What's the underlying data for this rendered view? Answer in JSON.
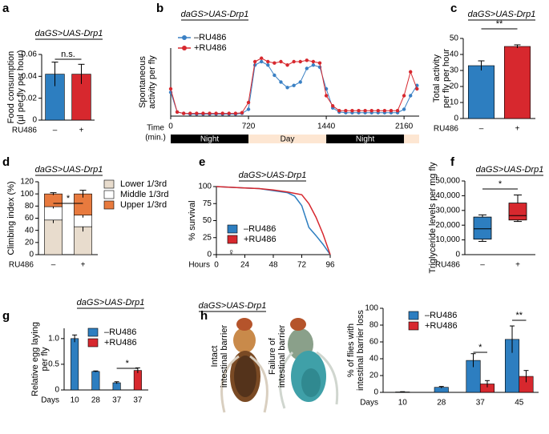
{
  "chart_data": [
    {
      "panel": "a",
      "type": "bar",
      "genotype": "daGS>UAS-Drp1",
      "ylabel": [
        "Food consumption",
        "(µl per fly per hour)"
      ],
      "xlabel": "RU486",
      "categories": [
        "–",
        "+"
      ],
      "values": [
        0.042,
        0.042
      ],
      "errors": [
        0.011,
        0.009
      ],
      "colors": [
        "#2d7ec0",
        "#d7282e"
      ],
      "ylim": [
        0,
        0.06
      ],
      "yticks": [
        0,
        0.02,
        0.04,
        0.06
      ],
      "annotations": [
        "n.s."
      ]
    },
    {
      "panel": "b",
      "type": "line",
      "genotype": "daGS>UAS-Drp1",
      "ylabel": [
        "Spontaneous",
        "activity per fly"
      ],
      "xlabel": [
        "Time",
        "(min.)"
      ],
      "x": [
        0,
        60,
        120,
        180,
        240,
        300,
        360,
        420,
        480,
        540,
        600,
        660,
        720,
        780,
        840,
        900,
        960,
        1020,
        1080,
        1140,
        1200,
        1260,
        1320,
        1380,
        1440,
        1500,
        1560,
        1620,
        1680,
        1740,
        1800,
        1860,
        1920,
        1980,
        2040,
        2100,
        2160,
        2220,
        2280
      ],
      "xlim": [
        0,
        2300
      ],
      "xticks": [
        0,
        720,
        1440,
        2160
      ],
      "ylim": [
        0,
        1
      ],
      "series": [
        {
          "name": "–RU486",
          "color": "#3a80c4",
          "values": [
            0.35,
            0.06,
            0.04,
            0.03,
            0.03,
            0.03,
            0.03,
            0.03,
            0.03,
            0.03,
            0.03,
            0.04,
            0.1,
            0.75,
            0.8,
            0.75,
            0.6,
            0.5,
            0.42,
            0.45,
            0.5,
            0.7,
            0.75,
            0.72,
            0.4,
            0.12,
            0.06,
            0.05,
            0.05,
            0.05,
            0.05,
            0.05,
            0.05,
            0.05,
            0.05,
            0.05,
            0.1,
            0.3,
            0.45
          ]
        },
        {
          "name": "+RU486",
          "color": "#d7282e",
          "values": [
            0.4,
            0.06,
            0.04,
            0.04,
            0.04,
            0.04,
            0.04,
            0.04,
            0.04,
            0.04,
            0.04,
            0.05,
            0.2,
            0.8,
            0.85,
            0.8,
            0.78,
            0.8,
            0.75,
            0.8,
            0.8,
            0.82,
            0.8,
            0.78,
            0.3,
            0.15,
            0.08,
            0.08,
            0.08,
            0.08,
            0.08,
            0.08,
            0.08,
            0.08,
            0.08,
            0.08,
            0.3,
            0.65,
            0.4
          ]
        }
      ],
      "periods": [
        {
          "label": "Night",
          "start": 0,
          "end": 720,
          "color": "#000000"
        },
        {
          "label": "Day",
          "start": 720,
          "end": 1440,
          "color": "#fde6d2"
        },
        {
          "label": "Night",
          "start": 1440,
          "end": 2160,
          "color": "#000000"
        },
        {
          "label": null,
          "start": 2160,
          "end": 2300,
          "color": "#fde6d2"
        }
      ]
    },
    {
      "panel": "c",
      "type": "bar",
      "genotype": "daGS>UAS-Drp1",
      "ylabel": [
        "Total activity",
        "per fly per hour"
      ],
      "xlabel": "RU486",
      "categories": [
        "–",
        "+"
      ],
      "values": [
        33,
        45
      ],
      "errors": [
        3,
        1
      ],
      "colors": [
        "#2d7ec0",
        "#d7282e"
      ],
      "ylim": [
        0,
        50
      ],
      "yticks": [
        0,
        10,
        20,
        30,
        40,
        50
      ],
      "annotations": [
        "**"
      ]
    },
    {
      "panel": "d",
      "type": "stacked_bar",
      "genotype": "daGS>UAS-Drp1",
      "ylabel": "Climbing index (%)",
      "xlabel": "RU486",
      "categories": [
        "–",
        "+"
      ],
      "series": [
        {
          "name": "Lower 1/3rd",
          "color": "#e8dccd",
          "values": [
            57,
            46
          ],
          "errors": [
            5,
            8
          ]
        },
        {
          "name": "Middle 1/3rd",
          "color": "#ffffff",
          "values": [
            22,
            19
          ],
          "errors": [
            3,
            4
          ]
        },
        {
          "name": "Upper 1/3rd",
          "color": "#e87a3e",
          "values": [
            21,
            35
          ],
          "errors": [
            2,
            6
          ]
        }
      ],
      "ylim": [
        0,
        120
      ],
      "yticks": [
        0,
        20,
        40,
        60,
        80,
        100,
        120
      ],
      "annotations": [
        "*"
      ]
    },
    {
      "panel": "e",
      "type": "line",
      "genotype": "daGS>UAS-Drp1",
      "ylabel": "% survival",
      "xlabel": "Hours",
      "x": [
        0,
        12,
        24,
        36,
        48,
        60,
        66,
        72,
        78,
        84,
        90,
        96
      ],
      "xlim": [
        0,
        96
      ],
      "xticks": [
        0,
        24,
        48,
        72,
        96
      ],
      "ylim": [
        0,
        100
      ],
      "yticks": [
        0,
        25,
        50,
        75,
        100
      ],
      "series": [
        {
          "name": "–RU486",
          "color": "#2d7ec0",
          "values": [
            100,
            99,
            98,
            97,
            94,
            91,
            86,
            72,
            40,
            28,
            15,
            0
          ]
        },
        {
          "name": "+RU486",
          "color": "#d7282e",
          "values": [
            100,
            99,
            98,
            97,
            95,
            92,
            90,
            88,
            75,
            55,
            30,
            0
          ]
        }
      ],
      "annotations": [
        "♀"
      ]
    },
    {
      "panel": "f",
      "type": "box",
      "genotype": "daGS>UAS-Drp1",
      "ylabel": "Triglyceride levels per mg fly",
      "xlabel": "RU486",
      "categories": [
        "–",
        "+"
      ],
      "boxes": [
        {
          "min": 9000,
          "q1": 10500,
          "median": 17500,
          "q3": 25500,
          "max": 27000
        },
        {
          "min": 22500,
          "q1": 23500,
          "median": 26500,
          "q3": 35000,
          "max": 40500
        }
      ],
      "colors": [
        "#2d7ec0",
        "#d7282e"
      ],
      "ylim": [
        0,
        50000
      ],
      "yticks": [
        0,
        {
          "value": 10000,
          "label": "10,000"
        },
        {
          "value": 20000,
          "label": "20,000"
        },
        {
          "value": 30000,
          "label": "30,000"
        },
        {
          "value": 40000,
          "label": "40,000"
        },
        {
          "value": 50000,
          "label": "50,000"
        }
      ],
      "annotations": [
        "*"
      ]
    },
    {
      "panel": "g",
      "type": "grouped_bar",
      "genotype": "daGS>UAS-Drp1",
      "ylabel": [
        "Relative egg laying",
        "per fly"
      ],
      "xlabel": "Days",
      "categories": [
        "10",
        "28",
        "37",
        "37"
      ],
      "series": [
        {
          "name": "–RU486",
          "color": "#2d7ec0",
          "values": [
            1.0,
            0.36,
            0.14,
            null
          ],
          "errors": [
            0.07,
            0.01,
            0.02,
            null
          ]
        },
        {
          "name": "+RU486",
          "color": "#d7282e",
          "values": [
            null,
            null,
            null,
            0.38
          ],
          "errors": [
            null,
            null,
            null,
            0.05
          ]
        }
      ],
      "ylim": [
        0,
        1.2
      ],
      "yticks": [
        0,
        0.5,
        {
          "value": 1,
          "label": "1.0"
        }
      ],
      "annotations": [
        "*"
      ]
    },
    {
      "panel": "h",
      "type": "grouped_bar",
      "genotype": "daGS>UAS-Drp1",
      "image_labels": [
        [
          "Intact",
          "intestinal barrier"
        ],
        [
          "Failure of",
          "intestinal barrier"
        ]
      ],
      "ylabel": [
        "% of flies with",
        "intestinal barrier loss"
      ],
      "xlabel": "Days",
      "categories": [
        "10",
        "28",
        "37",
        "45"
      ],
      "series": [
        {
          "name": "–RU486",
          "color": "#2d7ec0",
          "values": [
            0.5,
            6,
            38,
            63
          ],
          "errors": [
            0.3,
            1,
            8,
            16
          ]
        },
        {
          "name": "+RU486",
          "color": "#d7282e",
          "values": [
            null,
            null,
            10,
            19
          ],
          "errors": [
            null,
            null,
            4,
            7
          ]
        }
      ],
      "ylim": [
        0,
        100
      ],
      "yticks": [
        0,
        20,
        40,
        60,
        80,
        100
      ],
      "annotations": [
        "*",
        "**"
      ]
    }
  ]
}
